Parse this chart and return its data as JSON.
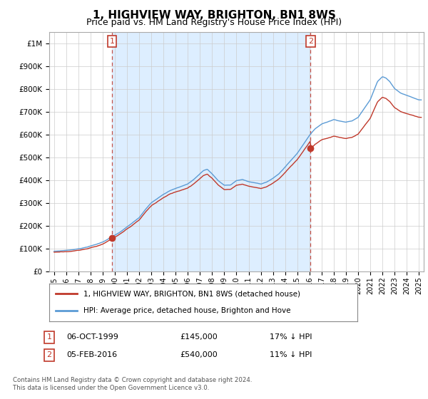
{
  "title": "1, HIGHVIEW WAY, BRIGHTON, BN1 8WS",
  "subtitle": "Price paid vs. HM Land Registry's House Price Index (HPI)",
  "legend_line1": "1, HIGHVIEW WAY, BRIGHTON, BN1 8WS (detached house)",
  "legend_line2": "HPI: Average price, detached house, Brighton and Hove",
  "sale1_label": "1",
  "sale1_date": "06-OCT-1999",
  "sale1_price": "£145,000",
  "sale1_hpi": "17% ↓ HPI",
  "sale2_label": "2",
  "sale2_date": "05-FEB-2016",
  "sale2_price": "£540,000",
  "sale2_hpi": "11% ↓ HPI",
  "footer": "Contains HM Land Registry data © Crown copyright and database right 2024.\nThis data is licensed under the Open Government Licence v3.0.",
  "hpi_color": "#5b9bd5",
  "price_color": "#c0392b",
  "vline_color": "#c0392b",
  "shade_color": "#ddeeff",
  "sale1_x": 1999.77,
  "sale2_x": 2016.09,
  "sale1_y": 145000,
  "sale2_y": 540000,
  "ylim": [
    0,
    1050000
  ],
  "xlim_left": 1994.6,
  "xlim_right": 2025.4,
  "background_color": "#ffffff",
  "grid_color": "#cccccc",
  "title_fontsize": 11,
  "subtitle_fontsize": 9
}
